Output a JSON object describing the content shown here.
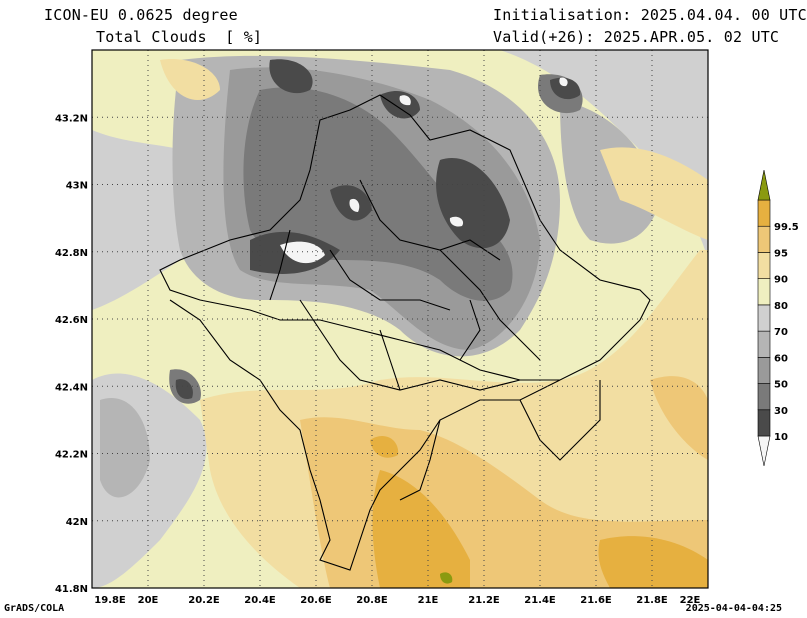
{
  "header": {
    "model_line": "ICON-EU 0.0625 degree",
    "variable_line": "Total Clouds  [ %]",
    "init_line": "Initialisation: 2025.04.04. 00 UTC",
    "valid_line": "Valid(+26): 2025.APR.05. 02 UTC"
  },
  "map": {
    "lon_ticks": [
      "19.8E",
      "20E",
      "20.2E",
      "20.4E",
      "20.6E",
      "20.8E",
      "21E",
      "21.2E",
      "21.4E",
      "21.6E",
      "21.8E",
      "22E"
    ],
    "lat_ticks": [
      "43.2N",
      "43N",
      "42.8N",
      "42.6N",
      "42.4N",
      "42.2N",
      "42N",
      "41.8N"
    ],
    "extent": {
      "lon": [
        19.8,
        22.0
      ],
      "lat": [
        41.8,
        43.4
      ]
    }
  },
  "colorbar": {
    "labels": [
      "10",
      "30",
      "50",
      "60",
      "70",
      "80",
      "90",
      "95",
      "99.5"
    ],
    "colors": [
      "#f5f5f5",
      "#4a4a4a",
      "#7a7a7a",
      "#9a9a9a",
      "#b5b5b5",
      "#d0d0d0",
      "#efefc0",
      "#f2dea2",
      "#eec777",
      "#e6b040",
      "#8a9a10"
    ]
  },
  "footer": {
    "credit": "GrADS/COLA",
    "timestamp": "2025-04-04-04:25"
  }
}
